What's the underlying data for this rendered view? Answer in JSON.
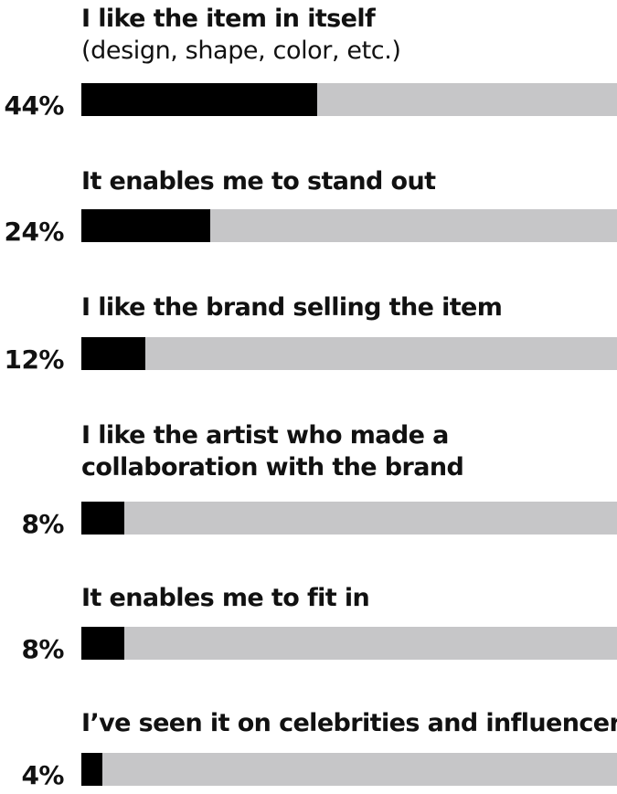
{
  "chart_data": {
    "type": "bar",
    "orientation": "horizontal",
    "value_suffix": "%",
    "xlim": [
      0,
      100
    ],
    "colors": {
      "fill": "#000000",
      "track": "#c6c6c8"
    },
    "categories": [
      {
        "label": "I like the item in itself",
        "sublabel": "(design, shape, color, etc.)",
        "value": 44,
        "value_label": "44%"
      },
      {
        "label": "It enables me to stand out",
        "sublabel": "",
        "value": 24,
        "value_label": "24%"
      },
      {
        "label": "I like the brand selling the item",
        "sublabel": "",
        "value": 12,
        "value_label": "12%"
      },
      {
        "label": "I like the artist who made a collaboration with the brand",
        "label_lines": [
          "I like the artist who made a",
          "collaboration with the brand"
        ],
        "sublabel": "",
        "value": 8,
        "value_label": "8%"
      },
      {
        "label": "It enables me to fit in",
        "sublabel": "",
        "value": 8,
        "value_label": "8%"
      },
      {
        "label": "I’ve seen it on celebrities and influencers",
        "sublabel": "",
        "value": 4,
        "value_label": "4%"
      }
    ]
  }
}
